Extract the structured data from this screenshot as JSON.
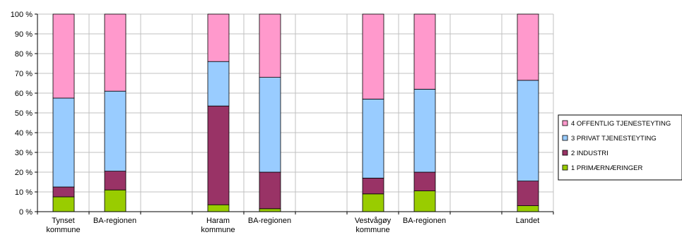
{
  "chart_data": {
    "type": "bar",
    "stacked": true,
    "normalized": true,
    "ylim": [
      0,
      100
    ],
    "y_ticks": [
      0,
      10,
      20,
      30,
      40,
      50,
      60,
      70,
      80,
      90,
      100
    ],
    "y_tick_labels": [
      "0 %",
      "10 %",
      "20 %",
      "30 %",
      "40 %",
      "50 %",
      "60 %",
      "70 %",
      "80 %",
      "90 %",
      "100 %"
    ],
    "grid": true,
    "legend_position": "right",
    "categories": [
      [
        "Tynset",
        "kommune"
      ],
      [
        "BA-regionen"
      ],
      [],
      [
        "Haram",
        "kommune"
      ],
      [
        "BA-regionen"
      ],
      [],
      [
        "Vestvågøy",
        "kommune"
      ],
      [
        "BA-regionen"
      ],
      [],
      [
        "Landet"
      ]
    ],
    "series": [
      {
        "name": "1 PRIMÆRNÆRINGER",
        "color": "#99cc00",
        "values": [
          7.5,
          11,
          null,
          3.5,
          1.5,
          null,
          9,
          10.5,
          null,
          3
        ]
      },
      {
        "name": "2 INDUSTRI",
        "color": "#993366",
        "values": [
          5,
          9.5,
          null,
          50,
          18.5,
          null,
          8,
          9.5,
          null,
          12.5
        ]
      },
      {
        "name": "3 PRIVAT TJENESTEYTING",
        "color": "#99ccff",
        "values": [
          45,
          40.5,
          null,
          22.5,
          48,
          null,
          40,
          42,
          null,
          51
        ]
      },
      {
        "name": "4 OFFENTLIG TJENESTEYTING",
        "color": "#ff99cc",
        "values": [
          42.5,
          39,
          null,
          24,
          32,
          null,
          43,
          38,
          null,
          33.5
        ]
      }
    ]
  }
}
